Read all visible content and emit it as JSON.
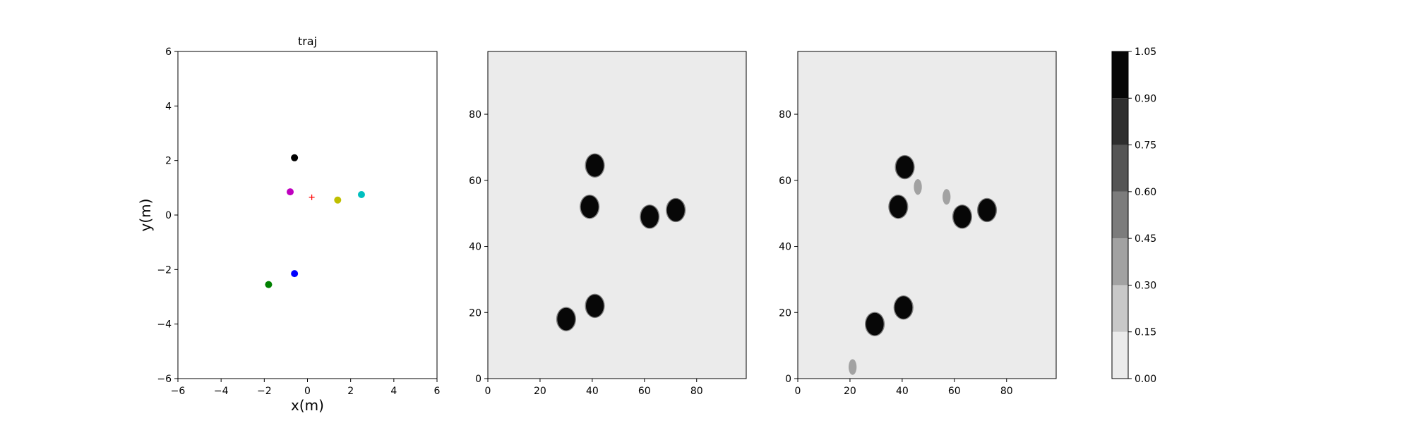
{
  "chart_data": [
    {
      "type": "scatter",
      "title": "traj",
      "xlabel": "x(m)",
      "ylabel": "y(m)",
      "xlim": [
        -6,
        6
      ],
      "ylim": [
        -6,
        6
      ],
      "xticks": [
        -6,
        -4,
        -2,
        0,
        2,
        4,
        6
      ],
      "yticks": [
        -6,
        -4,
        -2,
        0,
        2,
        4,
        6
      ],
      "grid": false,
      "points": [
        {
          "x": -0.6,
          "y": 2.1,
          "color": "#000000",
          "marker": "dot"
        },
        {
          "x": -0.8,
          "y": 0.85,
          "color": "#bf00bf",
          "marker": "dot"
        },
        {
          "x": 0.2,
          "y": 0.65,
          "color": "#ff0000",
          "marker": "plus"
        },
        {
          "x": 1.4,
          "y": 0.55,
          "color": "#bfbf00",
          "marker": "dot"
        },
        {
          "x": 2.5,
          "y": 0.75,
          "color": "#00bfbf",
          "marker": "dot"
        },
        {
          "x": -0.6,
          "y": -2.15,
          "color": "#0000ff",
          "marker": "dot"
        },
        {
          "x": -1.8,
          "y": -2.55,
          "color": "#008000",
          "marker": "dot"
        }
      ]
    },
    {
      "type": "heatmap",
      "title": "",
      "xlim": [
        0,
        99
      ],
      "ylim": [
        0,
        99
      ],
      "xticks": [
        0,
        20,
        40,
        60,
        80
      ],
      "yticks": [
        0,
        20,
        40,
        60,
        80
      ],
      "background_value": 0.05,
      "blobs": [
        {
          "x": 41,
          "y": 64.5,
          "value": 1.0
        },
        {
          "x": 39,
          "y": 52,
          "value": 1.0
        },
        {
          "x": 62,
          "y": 49,
          "value": 1.0
        },
        {
          "x": 72,
          "y": 51,
          "value": 1.0
        },
        {
          "x": 30,
          "y": 18,
          "value": 1.0
        },
        {
          "x": 41,
          "y": 22,
          "value": 1.0
        }
      ]
    },
    {
      "type": "heatmap",
      "title": "",
      "xlim": [
        0,
        99
      ],
      "ylim": [
        0,
        99
      ],
      "xticks": [
        0,
        20,
        40,
        60,
        80
      ],
      "yticks": [
        0,
        20,
        40,
        60,
        80
      ],
      "background_value": 0.05,
      "blobs": [
        {
          "x": 41,
          "y": 64,
          "value": 1.0
        },
        {
          "x": 38.5,
          "y": 52,
          "value": 1.0
        },
        {
          "x": 63,
          "y": 49,
          "value": 1.0
        },
        {
          "x": 72.5,
          "y": 51,
          "value": 1.0
        },
        {
          "x": 29.5,
          "y": 16.5,
          "value": 1.0
        },
        {
          "x": 40.5,
          "y": 21.5,
          "value": 1.0
        },
        {
          "x": 46,
          "y": 58,
          "value": 0.35
        },
        {
          "x": 57,
          "y": 55,
          "value": 0.3
        },
        {
          "x": 21,
          "y": 3.5,
          "value": 0.3
        }
      ]
    }
  ],
  "colorbar": {
    "levels": [
      0.0,
      0.15,
      0.3,
      0.45,
      0.6,
      0.75,
      0.9,
      1.05
    ],
    "tick_labels": [
      "0.00",
      "0.15",
      "0.30",
      "0.45",
      "0.60",
      "0.75",
      "0.90",
      "1.05"
    ],
    "colors": [
      "#ebebeb",
      "#c8c8c8",
      "#a2a2a2",
      "#7c7c7c",
      "#555555",
      "#2e2e2e",
      "#070707"
    ]
  }
}
